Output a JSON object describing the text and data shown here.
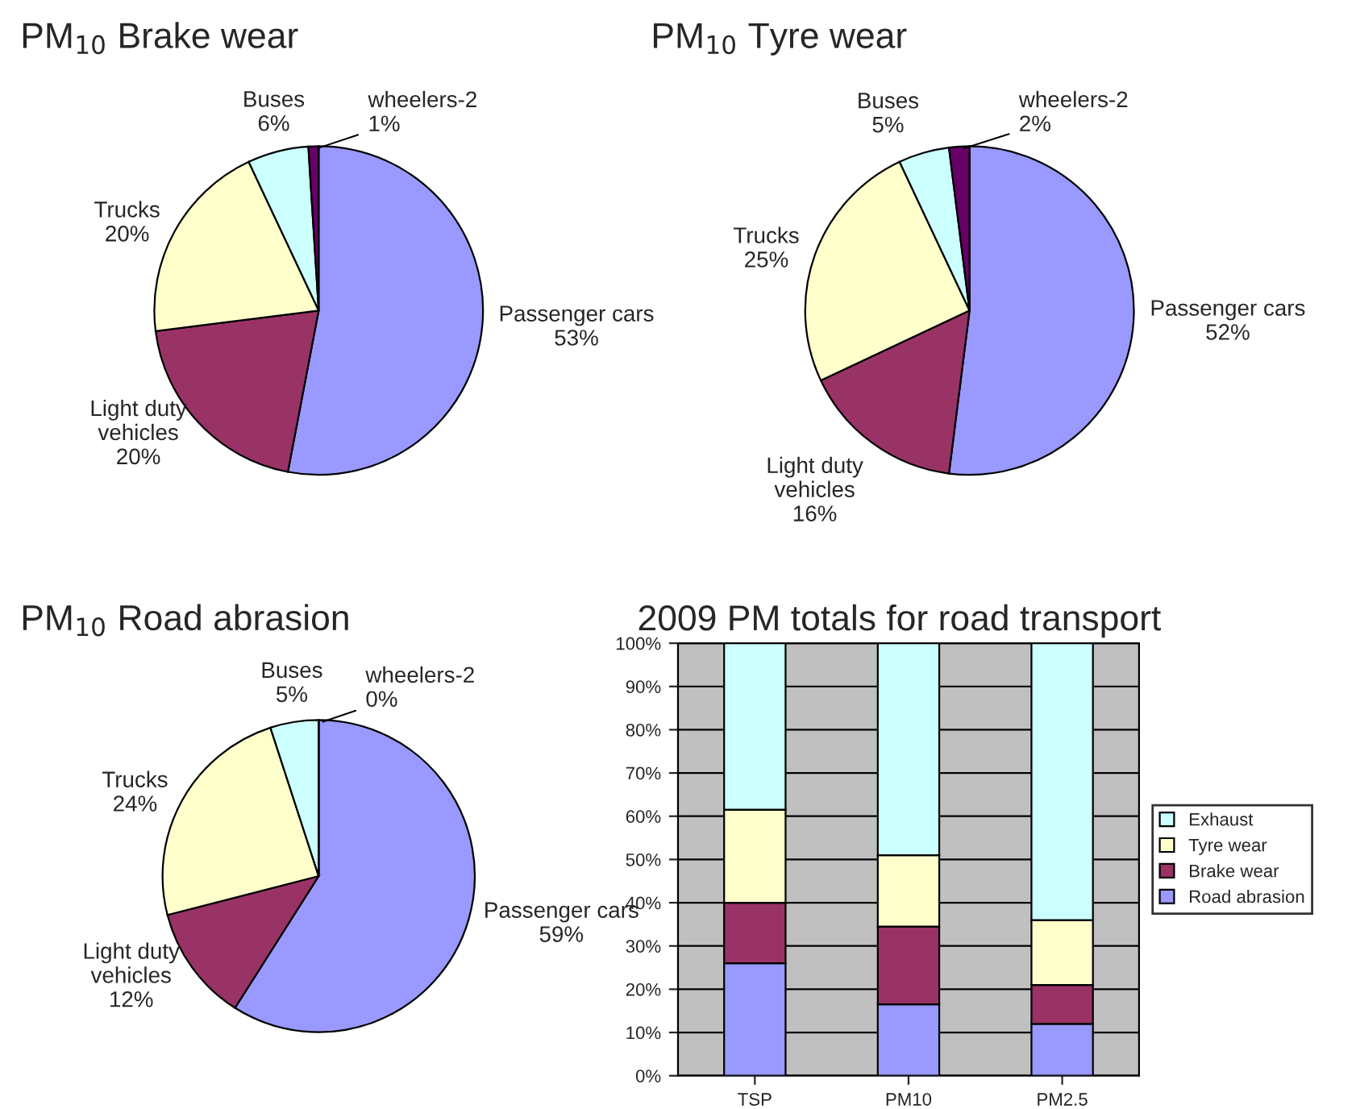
{
  "chart_data": [
    {
      "type": "pie",
      "title": "PM$_{10}$ Brake wear",
      "categories": [
        "Passenger cars",
        "Light duty\nvehicles",
        "Trucks",
        "Buses",
        "wheelers-2"
      ],
      "values": [
        53,
        20,
        20,
        6,
        1
      ],
      "value_labels": [
        "53%",
        "20%",
        "20%",
        "6%",
        "1%"
      ],
      "colors": [
        "#9999ff",
        "#993366",
        "#ffffcc",
        "#ccffff",
        "#660066"
      ]
    },
    {
      "type": "pie",
      "title": "PM$_{10}$ Tyre wear",
      "categories": [
        "Passenger cars",
        "Light duty\nvehicles",
        "Trucks",
        "Buses",
        "wheelers-2"
      ],
      "values": [
        52,
        16,
        25,
        5,
        2
      ],
      "value_labels": [
        "52%",
        "16%",
        "25%",
        "5%",
        "2%"
      ],
      "colors": [
        "#9999ff",
        "#993366",
        "#ffffcc",
        "#ccffff",
        "#660066"
      ]
    },
    {
      "type": "pie",
      "title": "PM$_{10}$ Road abrasion",
      "categories": [
        "Passenger cars",
        "Light duty\nvehicles",
        "Trucks",
        "Buses",
        "wheelers-2"
      ],
      "values": [
        59,
        12,
        24,
        5,
        0
      ],
      "value_labels": [
        "59%",
        "12%",
        "24%",
        "5%",
        "0%"
      ],
      "colors": [
        "#9999ff",
        "#993366",
        "#ffffcc",
        "#ccffff",
        "#660066"
      ]
    },
    {
      "type": "bar",
      "title": "2009 PM totals for road transport",
      "stacked": true,
      "categories": [
        "TSP",
        "PM10",
        "PM2.5"
      ],
      "series": [
        {
          "name": "Road abrasion",
          "color": "#9999ff",
          "values": [
            26,
            16.5,
            12
          ]
        },
        {
          "name": "Brake wear",
          "color": "#993366",
          "values": [
            14,
            18,
            9
          ]
        },
        {
          "name": "Tyre wear",
          "color": "#ffffcc",
          "values": [
            21.5,
            16.5,
            15
          ]
        },
        {
          "name": "Exhaust",
          "color": "#ccffff",
          "values": [
            38.5,
            49,
            64
          ]
        }
      ],
      "ylim": [
        0,
        100
      ],
      "yticks": [
        {
          "value": 0,
          "label": "0%"
        },
        {
          "value": 10,
          "label": "10%"
        },
        {
          "value": 20,
          "label": "20%"
        },
        {
          "value": 30,
          "label": "30%"
        },
        {
          "value": 40,
          "label": "40%"
        },
        {
          "value": 50,
          "label": "50%"
        },
        {
          "value": 60,
          "label": "60%"
        },
        {
          "value": 70,
          "label": "70%"
        },
        {
          "value": 80,
          "label": "80%"
        },
        {
          "value": 90,
          "label": "90%"
        },
        {
          "value": 100,
          "label": "100%"
        }
      ],
      "grid": "y",
      "legend": "right"
    }
  ]
}
